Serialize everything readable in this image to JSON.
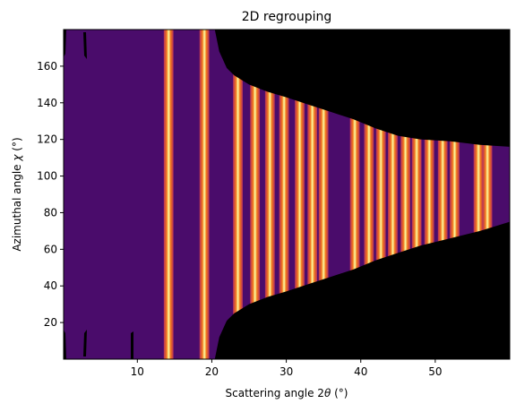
{
  "chart_data": {
    "type": "heatmap",
    "title": "2D regrouping",
    "xlabel_prefix": "Scattering angle 2",
    "xlabel_symbol": "θ",
    "xlabel_suffix": " (°)",
    "ylabel_prefix": "Azimuthal angle ",
    "ylabel_symbol": "χ",
    "ylabel_suffix": " (°)",
    "xlim": [
      0.1,
      60
    ],
    "ylim": [
      0,
      180
    ],
    "x_ticks": [
      10,
      20,
      30,
      40,
      50
    ],
    "y_ticks": [
      20,
      40,
      60,
      80,
      100,
      120,
      140,
      160
    ],
    "colormap": "inferno",
    "colors": {
      "background": "#4a0c6b",
      "masked": "#000000",
      "ring_edge": "#b42f5c",
      "ring_mid": "#f3761a",
      "ring_peak": "#fcffa4"
    },
    "rings_two_theta": [
      14.2,
      19.0,
      23.5,
      25.8,
      27.8,
      29.7,
      31.8,
      33.5,
      35.0,
      39.2,
      41.1,
      42.7,
      44.3,
      46.0,
      47.5,
      49.2,
      51.0,
      52.6,
      55.8,
      57.0
    ],
    "ring_width_deg": 1.3,
    "coverage_boundary": [
      {
        "two_theta": 20.4,
        "chi_min": 0,
        "chi_max": 180
      },
      {
        "two_theta": 21.0,
        "chi_min": 12,
        "chi_max": 168
      },
      {
        "two_theta": 22.0,
        "chi_min": 21,
        "chi_max": 159
      },
      {
        "two_theta": 23.0,
        "chi_min": 25,
        "chi_max": 155
      },
      {
        "two_theta": 25.0,
        "chi_min": 30,
        "chi_max": 150
      },
      {
        "two_theta": 27.5,
        "chi_min": 34,
        "chi_max": 146
      },
      {
        "two_theta": 30.0,
        "chi_min": 37,
        "chi_max": 143
      },
      {
        "two_theta": 33.0,
        "chi_min": 41,
        "chi_max": 139
      },
      {
        "two_theta": 36.0,
        "chi_min": 45,
        "chi_max": 135
      },
      {
        "two_theta": 39.0,
        "chi_min": 49,
        "chi_max": 131
      },
      {
        "two_theta": 42.0,
        "chi_min": 54,
        "chi_max": 126
      },
      {
        "two_theta": 45.0,
        "chi_min": 58,
        "chi_max": 122
      },
      {
        "two_theta": 48.0,
        "chi_min": 62,
        "chi_max": 120
      },
      {
        "two_theta": 52.0,
        "chi_min": 66,
        "chi_max": 119
      },
      {
        "two_theta": 56.0,
        "chi_min": 70,
        "chi_max": 117
      },
      {
        "two_theta": 60.0,
        "chi_min": 75,
        "chi_max": 116
      }
    ]
  }
}
